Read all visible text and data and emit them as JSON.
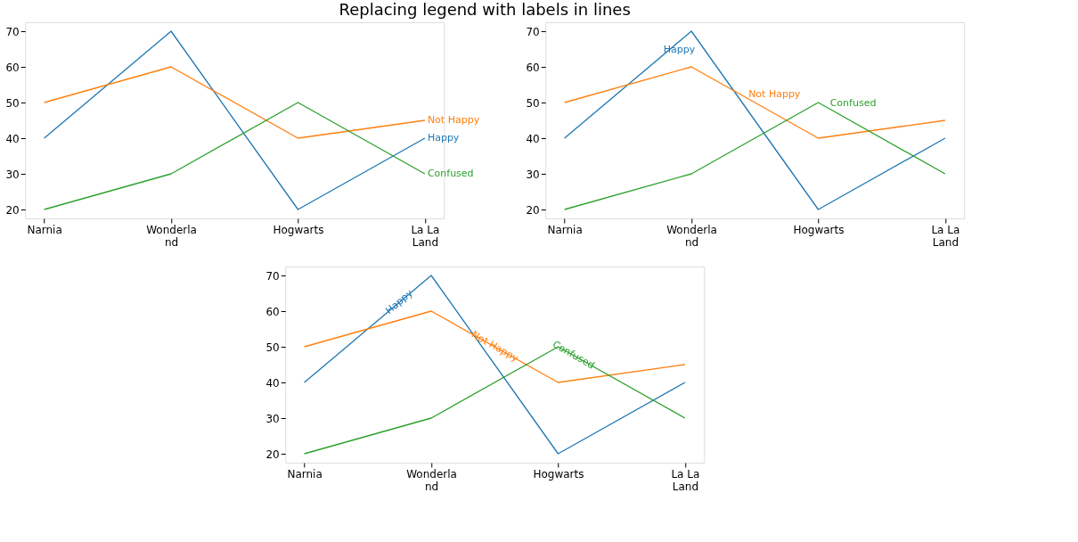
{
  "chart_data": [
    {
      "type": "line",
      "title": "Replacing legend with labels in lines",
      "categories": [
        "Narnia",
        "Wonderland",
        "Hogwarts",
        "La La Land"
      ],
      "series": [
        {
          "name": "Happy",
          "color": "#1f77b4",
          "values": [
            40,
            70,
            20,
            40
          ]
        },
        {
          "name": "Not Happy",
          "color": "#ff7f0e",
          "values": [
            50,
            60,
            40,
            45
          ]
        },
        {
          "name": "Confused",
          "color": "#2ca02c",
          "values": [
            20,
            30,
            50,
            30
          ]
        }
      ],
      "ylim": [
        17.5,
        72.5
      ],
      "yticks": [
        20,
        30,
        40,
        50,
        60,
        70
      ],
      "grid": false,
      "legend": false
    },
    {
      "type": "line",
      "categories": [
        "Narnia",
        "Wonderland",
        "Hogwarts",
        "La La Land"
      ],
      "series": [
        {
          "name": "Happy",
          "color": "#1f77b4",
          "values": [
            40,
            70,
            20,
            40
          ]
        },
        {
          "name": "Not Happy",
          "color": "#ff7f0e",
          "values": [
            50,
            60,
            40,
            45
          ]
        },
        {
          "name": "Confused",
          "color": "#2ca02c",
          "values": [
            20,
            30,
            50,
            30
          ]
        }
      ],
      "ylim": [
        17.5,
        72.5
      ],
      "yticks": [
        20,
        30,
        40,
        50,
        60,
        70
      ],
      "grid": false,
      "legend": false
    },
    {
      "type": "line",
      "categories": [
        "Narnia",
        "Wonderland",
        "Hogwarts",
        "La La Land"
      ],
      "series": [
        {
          "name": "Happy",
          "color": "#1f77b4",
          "values": [
            40,
            70,
            20,
            40
          ]
        },
        {
          "name": "Not Happy",
          "color": "#ff7f0e",
          "values": [
            50,
            60,
            40,
            45
          ]
        },
        {
          "name": "Confused",
          "color": "#2ca02c",
          "values": [
            20,
            30,
            50,
            30
          ]
        }
      ],
      "ylim": [
        17.5,
        72.5
      ],
      "yticks": [
        20,
        30,
        40,
        50,
        60,
        70
      ],
      "grid": false,
      "legend": false
    }
  ]
}
